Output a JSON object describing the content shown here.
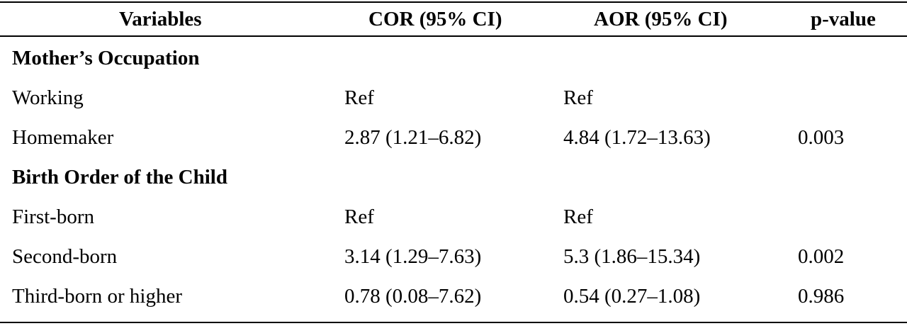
{
  "table": {
    "headers": {
      "variable": "Variables",
      "cor": "COR (95% CI)",
      "aor": "AOR (95% CI)",
      "p": "p-value"
    },
    "sections": [
      {
        "title": "Mother’s Occupation",
        "rows": [
          {
            "variable": "Working",
            "cor": "Ref",
            "aor": "Ref",
            "p": ""
          },
          {
            "variable": "Homemaker",
            "cor": "2.87 (1.21–6.82)",
            "aor": "4.84 (1.72–13.63)",
            "p": "0.003"
          }
        ]
      },
      {
        "title": "Birth Order of the Child",
        "rows": [
          {
            "variable": "First-born",
            "cor": "Ref",
            "aor": "Ref",
            "p": ""
          },
          {
            "variable": "Second-born",
            "cor": "3.14 (1.29–7.63)",
            "aor": "5.3 (1.86–15.34)",
            "p": "0.002"
          },
          {
            "variable": "Third-born or higher",
            "cor": "0.78 (0.08–7.62)",
            "aor": "0.54 (0.27–1.08)",
            "p": "0.986"
          }
        ]
      }
    ]
  }
}
